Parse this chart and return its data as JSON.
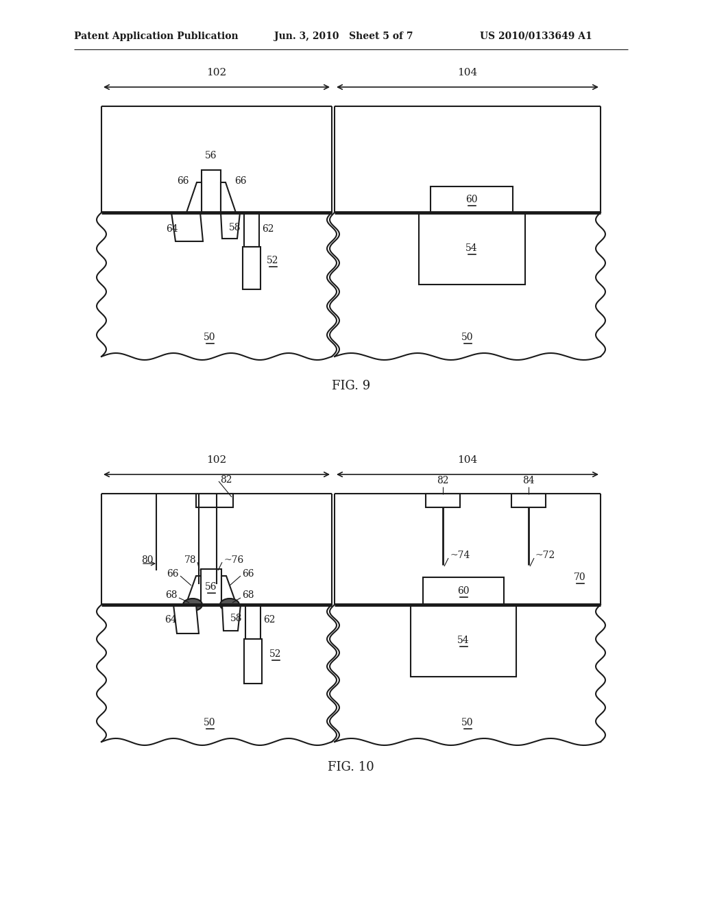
{
  "bg_color": "#ffffff",
  "line_color": "#1a1a1a",
  "header_text_left": "Patent Application Publication",
  "header_text_mid": "Jun. 3, 2010   Sheet 5 of 7",
  "header_text_right": "US 2010/0133649 A1",
  "fig9_label": "FIG. 9",
  "fig10_label": "FIG. 10"
}
